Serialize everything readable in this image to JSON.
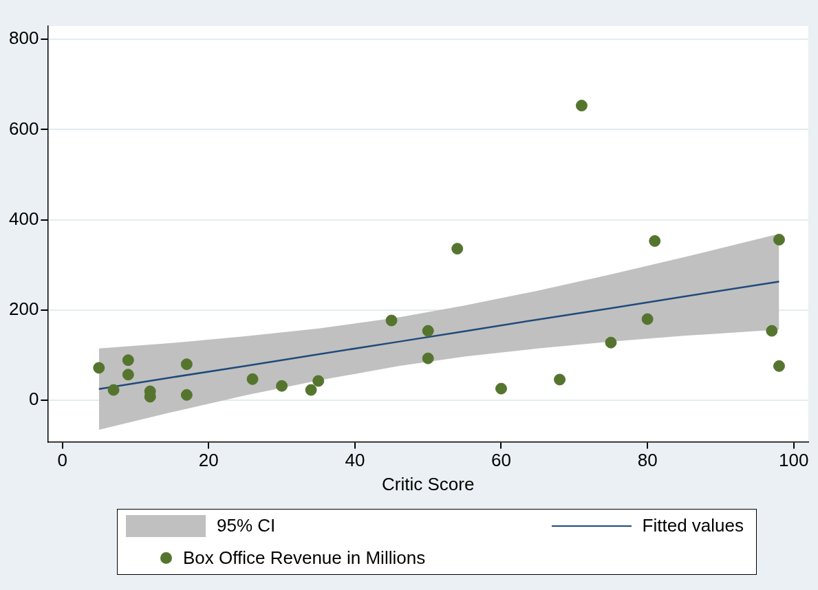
{
  "chart_data": {
    "type": "scatter",
    "xlabel": "Critic Score",
    "xlim": [
      -2,
      102
    ],
    "xticks": [
      0,
      20,
      40,
      60,
      80,
      100
    ],
    "ylim": [
      -92,
      829
    ],
    "yticks": [
      0,
      200,
      400,
      600,
      800
    ],
    "grid": "y",
    "legend": "bottom",
    "annotations": [
      "95% CI"
    ],
    "series": [
      {
        "name": "Fitted values",
        "type": "line",
        "color": "#1f4a7a",
        "marker": "none",
        "x": [
          5,
          15,
          25,
          35,
          46,
          55,
          65,
          75,
          85,
          98
        ],
        "values": [
          25,
          51,
          76,
          102,
          130,
          153,
          179,
          204,
          230,
          263
        ],
        "lower": [
          -65,
          -26,
          11,
          44,
          76,
          97,
          115,
          130,
          143,
          157
        ],
        "upper": [
          115,
          127,
          142,
          159,
          184,
          210,
          243,
          279,
          317,
          369
        ]
      },
      {
        "name": "Box Office Revenue in Millions",
        "color": "#55752f",
        "marker": "circle",
        "x": [
          5,
          7,
          9,
          9,
          12,
          12,
          17,
          17,
          26,
          30,
          34,
          35,
          45,
          50,
          50,
          54,
          60,
          68,
          71,
          75,
          80,
          81,
          97,
          98,
          98
        ],
        "values": [
          72,
          23,
          89,
          57,
          20,
          8,
          80,
          12,
          47,
          32,
          23,
          43,
          177,
          154,
          93,
          336,
          26,
          46,
          653,
          128,
          180,
          353,
          154,
          356,
          76
        ]
      }
    ]
  }
}
